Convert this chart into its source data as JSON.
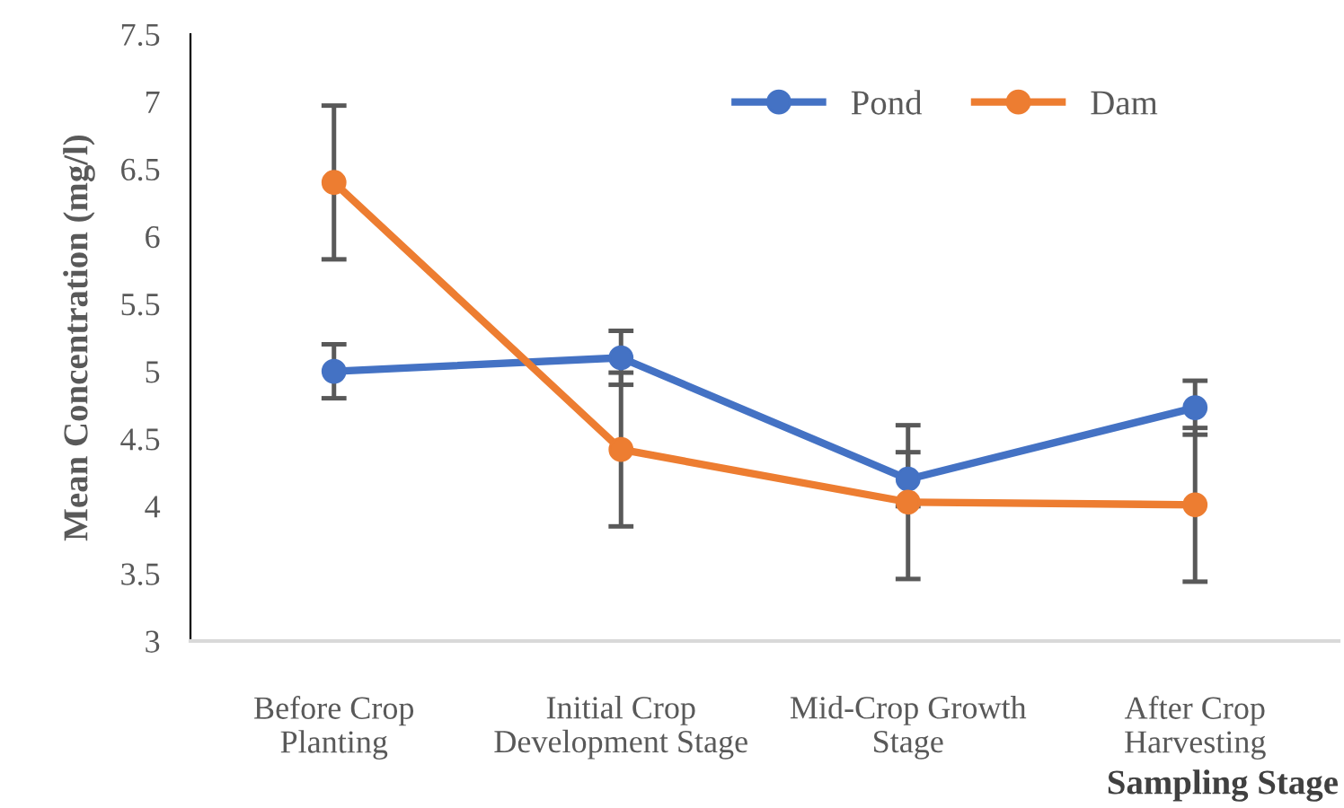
{
  "chart_data": {
    "type": "line",
    "categories": [
      "Before Crop\nPlanting",
      "Initial Crop\nDevelopment Stage",
      "Mid-Crop Growth\nStage",
      "After Crop\nHarvesting"
    ],
    "series": [
      {
        "name": "Pond",
        "color": "#4472c4",
        "values": [
          5.0,
          5.1,
          4.2,
          4.73
        ],
        "errors": [
          0.2,
          0.2,
          0.2,
          0.2
        ]
      },
      {
        "name": "Dam",
        "color": "#ed7d31",
        "values": [
          6.4,
          4.42,
          4.03,
          4.01
        ],
        "errors": [
          0.57,
          0.57,
          0.57,
          0.57
        ]
      }
    ],
    "xlabel": "Sampling Stage",
    "ylabel": "Mean Concentration (mg/l)",
    "ylim": [
      3,
      7.5
    ],
    "yticks": [
      3,
      3.5,
      4,
      4.5,
      5,
      5.5,
      6,
      6.5,
      7,
      7.5
    ],
    "marker": "circle",
    "line_style": "solid",
    "legend": "top right",
    "grid": false
  }
}
